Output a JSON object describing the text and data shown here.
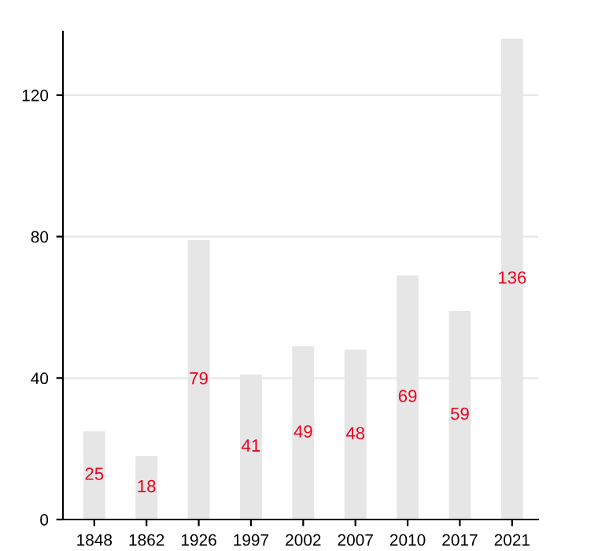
{
  "chart_data": {
    "type": "bar",
    "categories": [
      "1848",
      "1862",
      "1926",
      "1997",
      "2002",
      "2007",
      "2010",
      "2017",
      "2021"
    ],
    "values": [
      25,
      18,
      79,
      41,
      49,
      48,
      69,
      59,
      136
    ],
    "color": "#e6e6e6",
    "ylim": [
      0,
      138
    ],
    "yticks": [
      0,
      40,
      80,
      120
    ],
    "grid": "y",
    "data_labels": true
  }
}
